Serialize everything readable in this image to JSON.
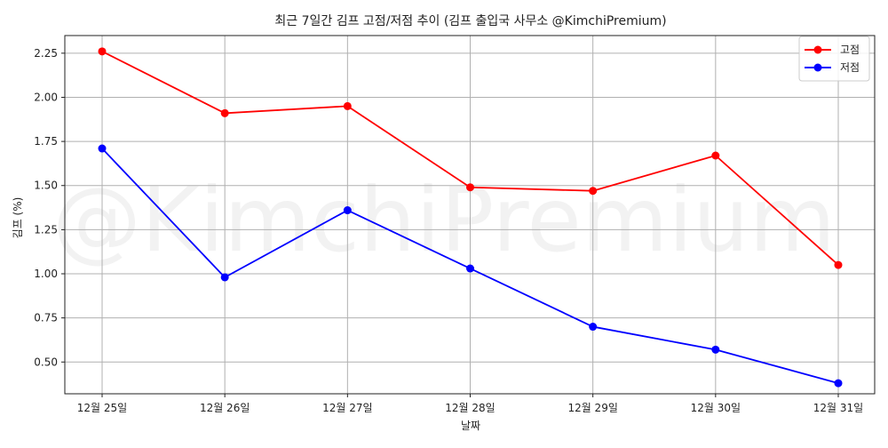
{
  "chart_data": {
    "type": "line",
    "title": "최근 7일간 김프 고점/저점 추이 (김프 출입국 사무소 @KimchiPremium)",
    "xlabel": "날짜",
    "ylabel": "김프 (%)",
    "watermark": "@KimchiPremium",
    "categories": [
      "12월 25일",
      "12월 26일",
      "12월 27일",
      "12월 28일",
      "12월 29일",
      "12월 30일",
      "12월 31일"
    ],
    "yticks": [
      "0.50",
      "0.75",
      "1.00",
      "1.25",
      "1.50",
      "1.75",
      "2.00",
      "2.25"
    ],
    "ylim": [
      0.32,
      2.35
    ],
    "grid": true,
    "legend_position": "top-right",
    "series": [
      {
        "name": "고점",
        "color": "#ff0000",
        "values": [
          2.26,
          1.91,
          1.95,
          1.49,
          1.47,
          1.67,
          1.05
        ]
      },
      {
        "name": "저점",
        "color": "#0000ff",
        "values": [
          1.71,
          0.98,
          1.36,
          1.03,
          0.7,
          0.57,
          0.38
        ]
      }
    ]
  }
}
